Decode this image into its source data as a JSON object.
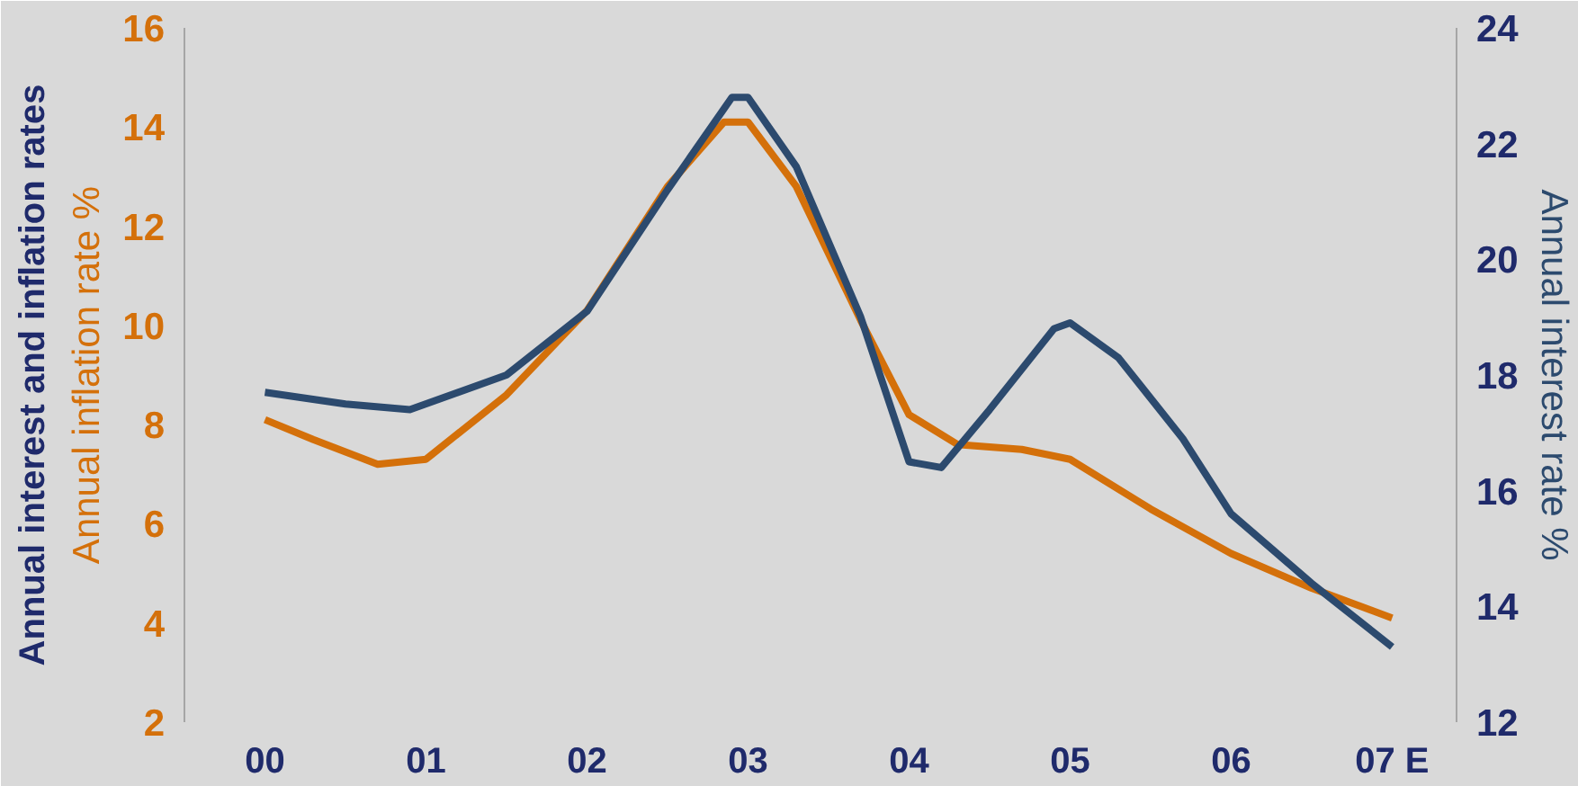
{
  "chart_data": {
    "type": "line",
    "title": "Annual interest and inflation rates",
    "ylabel": "Annual inflation rate %",
    "y2label": "Annual interest rate %",
    "xlim": [
      -0.5,
      7.4
    ],
    "xticks": [
      {
        "value": 0,
        "label": "00"
      },
      {
        "value": 1,
        "label": "01"
      },
      {
        "value": 2,
        "label": "02"
      },
      {
        "value": 3,
        "label": "03"
      },
      {
        "value": 4,
        "label": "04"
      },
      {
        "value": 5,
        "label": "05"
      },
      {
        "value": 6,
        "label": "06"
      },
      {
        "value": 7,
        "label": "07 E"
      }
    ],
    "ylim": [
      2,
      16
    ],
    "yticks": [
      2,
      4,
      6,
      8,
      10,
      12,
      14,
      16
    ],
    "y2lim": [
      12,
      24
    ],
    "y2ticks": [
      12,
      14,
      16,
      18,
      20,
      22,
      24
    ],
    "grid": false,
    "series": [
      {
        "color": "#d4700a",
        "x": [
          0,
          0.3,
          0.7,
          1,
          1.5,
          2,
          2.5,
          2.85,
          3,
          3.3,
          3.7,
          4,
          4.3,
          4.7,
          5,
          5.5,
          6,
          6.5,
          7
        ],
        "values": [
          8.1,
          7.7,
          7.2,
          7.3,
          8.6,
          10.3,
          12.8,
          14.1,
          14.1,
          12.8,
          10.1,
          8.2,
          7.6,
          7.5,
          7.3,
          6.3,
          5.4,
          4.7,
          4.1
        ]
      },
      {
        "color": "#2c4a6e",
        "axis": "y2",
        "x": [
          0,
          0.5,
          0.9,
          1.5,
          2,
          2.5,
          2.9,
          3,
          3.3,
          3.7,
          4,
          4.2,
          4.5,
          4.9,
          5,
          5.3,
          5.7,
          6,
          6.5,
          7
        ],
        "values": [
          17.7,
          17.5,
          17.4,
          18.0,
          19.1,
          21.2,
          22.8,
          22.8,
          21.6,
          19.0,
          16.5,
          16.4,
          17.4,
          18.8,
          18.9,
          18.3,
          16.9,
          15.6,
          14.4,
          13.3
        ]
      }
    ]
  }
}
